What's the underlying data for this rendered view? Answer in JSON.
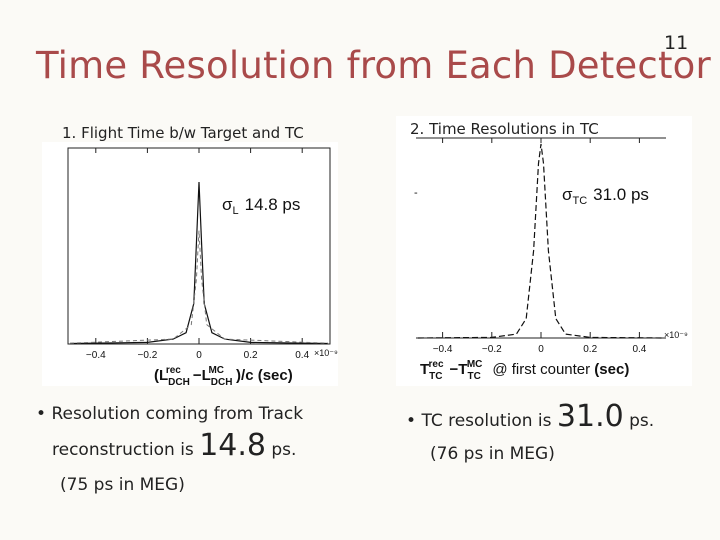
{
  "slide": {
    "title": "Time Resolution from Each Detector",
    "page_number": "11"
  },
  "left_panel": {
    "caption": "1. Flight Time b/w Target and TC",
    "sigma_label": "σL 14.8 ps",
    "sigma_symbol": "σ",
    "sigma_sub": "L",
    "sigma_value": "14.8 ps",
    "xlabel": "(L^rec_DCH − L^MC_DCH)/c (sec)",
    "exponent": "×10⁻⁹"
  },
  "right_panel": {
    "caption": "2. Time Resolutions in TC",
    "sigma_symbol": "σ",
    "sigma_sub": "TC",
    "sigma_value": "31.0 ps",
    "xlabel": "T^rec_TC − T^MC_TC @ first counter (sec)",
    "exponent": "×10⁻⁹"
  },
  "bullets": {
    "left_line1": "Resolution coming from Track",
    "left_line2_prefix": "reconstruction is",
    "left_value": "14.8",
    "left_unit": "ps.",
    "left_meg": "(75 ps in MEG)",
    "right_prefix": "TC resolution is",
    "right_value": "31.0",
    "right_unit": "ps.",
    "right_meg": "(76 ps in MEG)"
  },
  "chart_data": [
    {
      "type": "line",
      "title": "1. Flight Time b/w Target and TC",
      "xlabel": "(L^rec_DCH − L^MC_DCH)/c (sec)",
      "x_scale": "×10⁻⁹",
      "xlim": [
        -0.5,
        0.5
      ],
      "x_ticks": [
        "-0.4",
        "-0.2",
        "0",
        "0.2",
        "0.4"
      ],
      "series": [
        {
          "x": [
            -0.5,
            -0.2,
            -0.1,
            -0.05,
            -0.02,
            -0.01,
            0,
            0.01,
            0.02,
            0.05,
            0.1,
            0.2,
            0.5
          ],
          "y": [
            0.003,
            0.01,
            0.03,
            0.07,
            0.25,
            0.62,
            1.0,
            0.62,
            0.25,
            0.07,
            0.03,
            0.01,
            0.003
          ]
        }
      ],
      "annotations": [
        "σL 14.8 ps"
      ]
    },
    {
      "type": "line",
      "title": "2. Time Resolutions in TC",
      "xlabel": "T^rec_TC − T^MC_TC @ first counter (sec)",
      "x_scale": "×10⁻⁹",
      "xlim": [
        -0.5,
        0.5
      ],
      "x_ticks": [
        "-0.4",
        "-0.2",
        "0",
        "0.2",
        "0.4"
      ],
      "series": [
        {
          "x": [
            -0.5,
            -0.2,
            -0.1,
            -0.06,
            -0.03,
            -0.01,
            0,
            0.01,
            0.03,
            0.06,
            0.1,
            0.2,
            0.5
          ],
          "y": [
            0.0,
            0.003,
            0.02,
            0.1,
            0.45,
            0.9,
            1.0,
            0.9,
            0.45,
            0.1,
            0.02,
            0.003,
            0.0
          ]
        }
      ],
      "annotations": [
        "σTC 31.0 ps"
      ]
    }
  ]
}
